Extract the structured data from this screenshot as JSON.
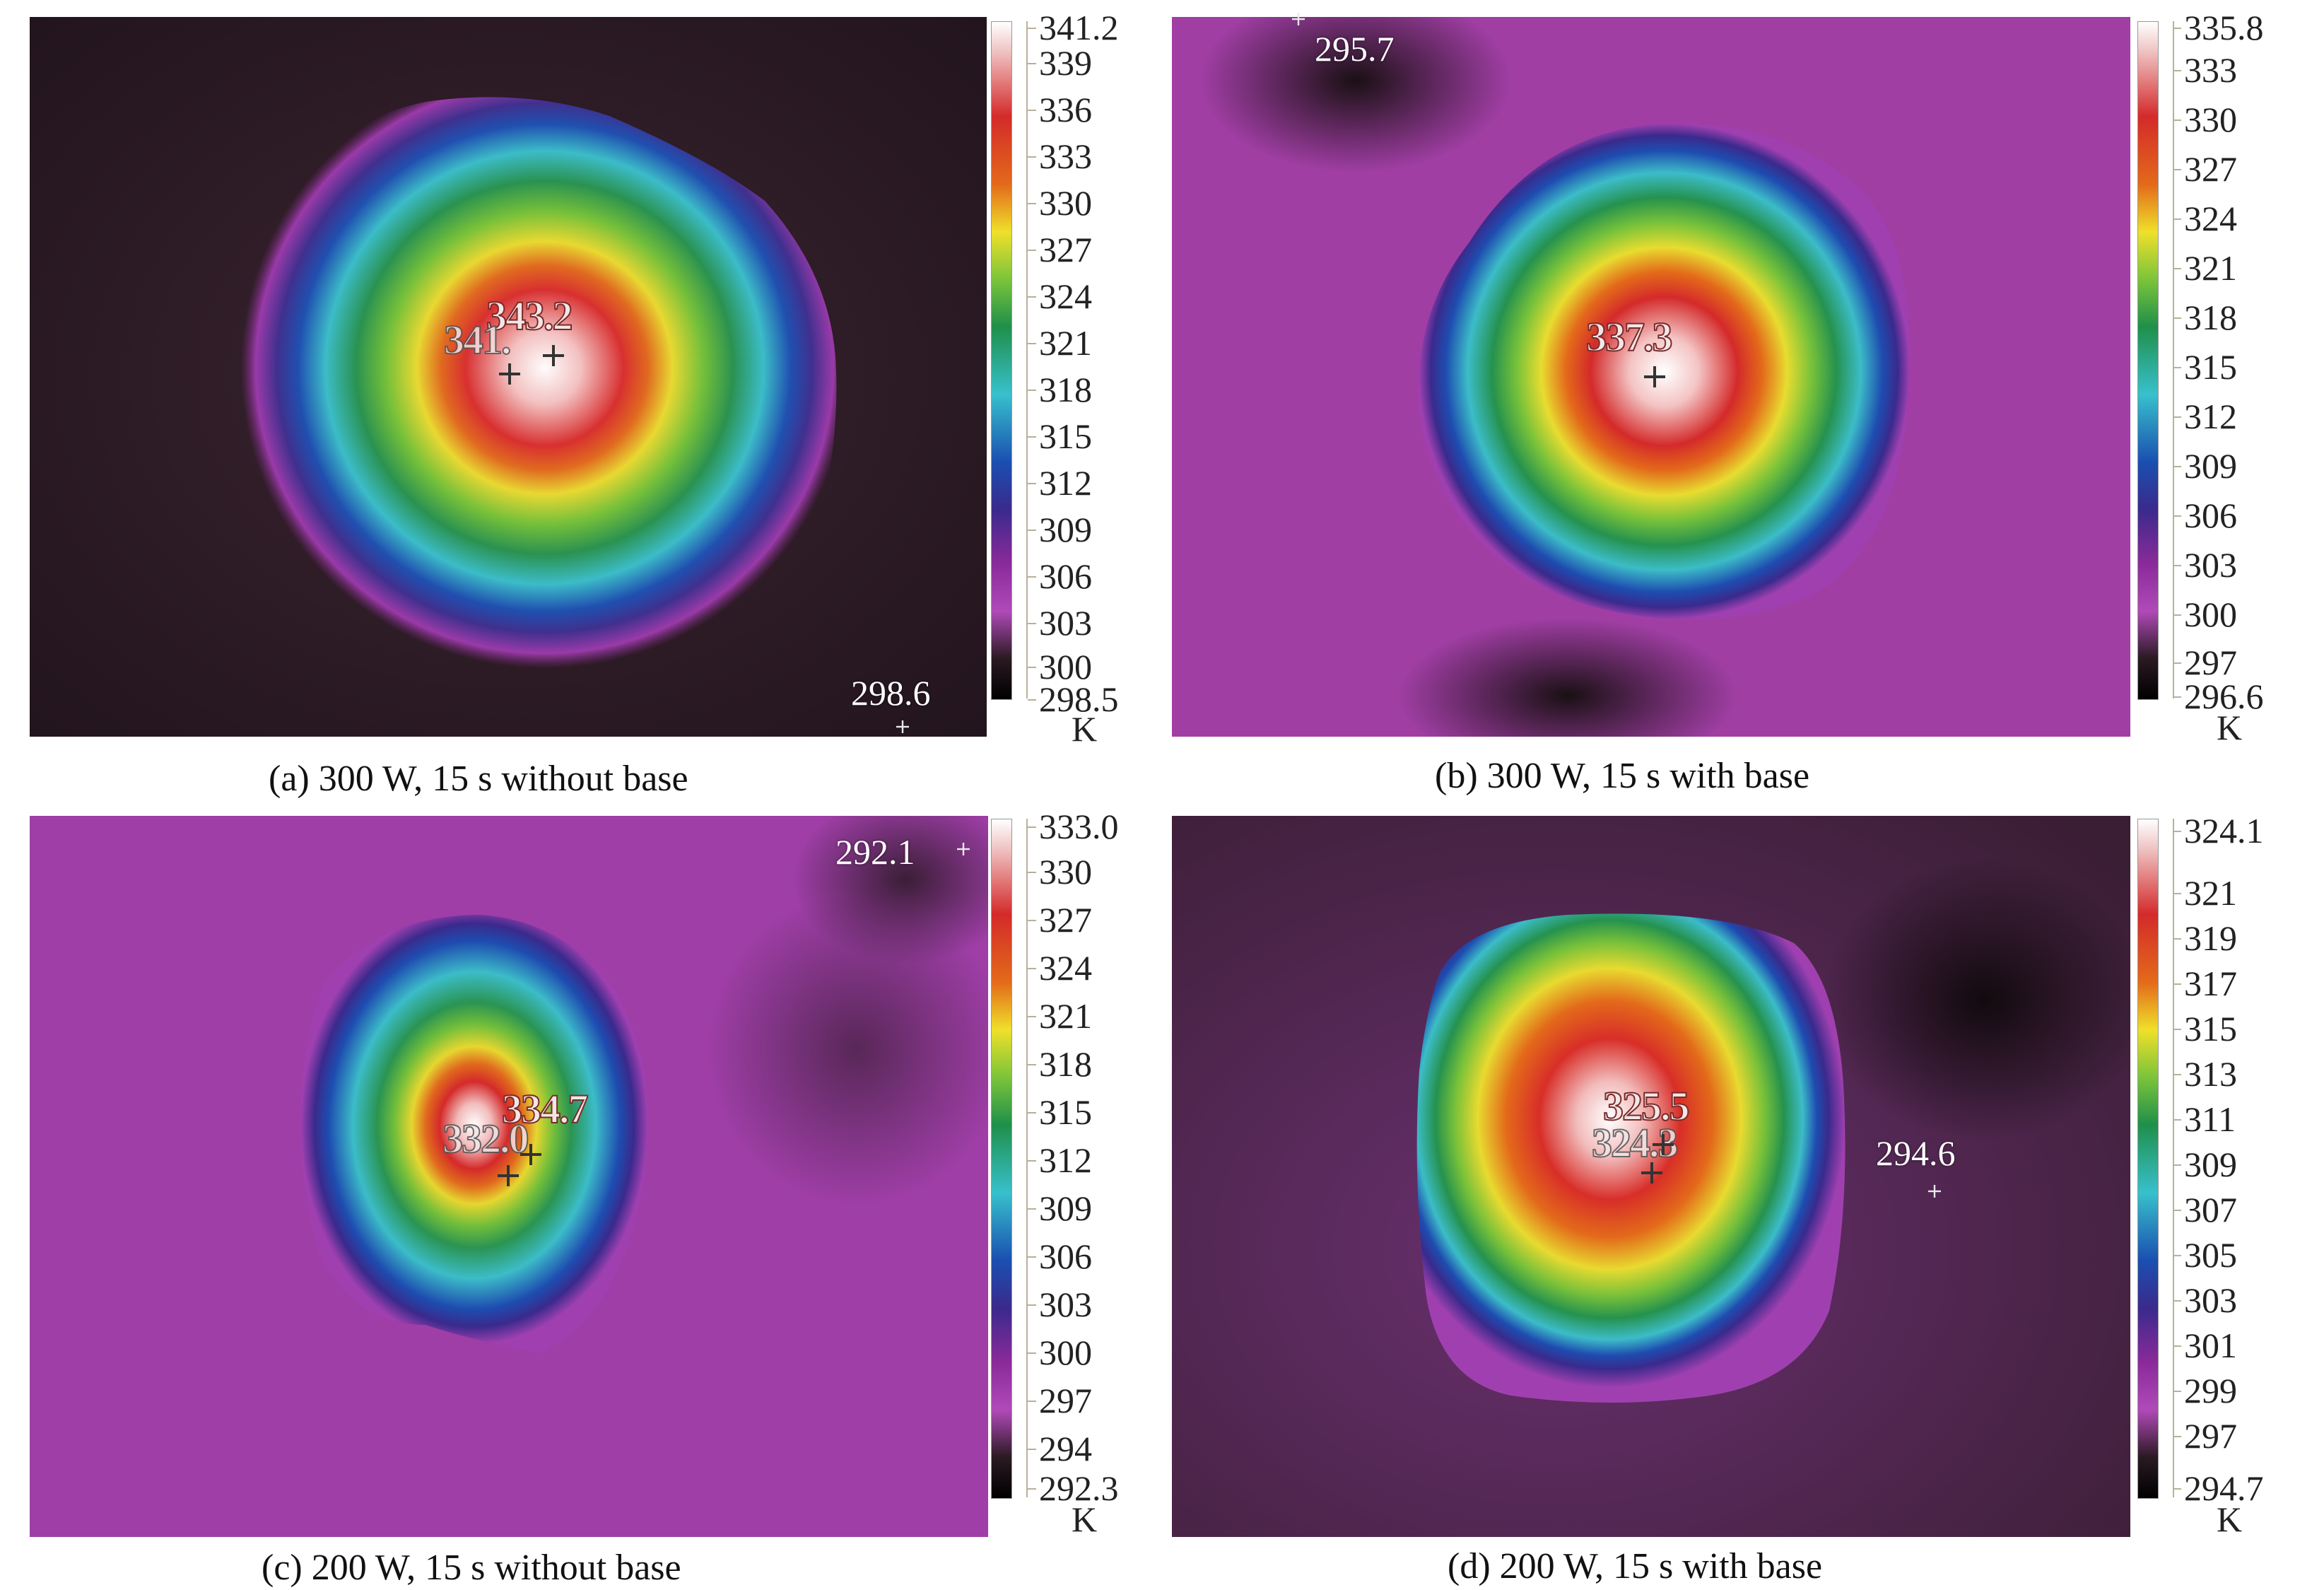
{
  "panels": [
    {
      "caption": "(a) 300 W, 15 s without base",
      "scale_top": "341.2",
      "scale_bottom": "298.5",
      "ticks": [
        "339",
        "336",
        "333",
        "330",
        "327",
        "324",
        "321",
        "318",
        "315",
        "312",
        "309",
        "306",
        "303",
        "300"
      ],
      "unit": "K",
      "peak_labels": [
        "343.2",
        "341."
      ],
      "spot_label": "298.6"
    },
    {
      "caption": "(b) 300 W, 15 s with base",
      "scale_top": "335.8",
      "scale_bottom": "296.6",
      "ticks": [
        "333",
        "330",
        "327",
        "324",
        "321",
        "318",
        "315",
        "312",
        "309",
        "306",
        "303",
        "300",
        "297"
      ],
      "unit": "K",
      "peak_labels": [
        "337.3"
      ],
      "spot_label": "295.7"
    },
    {
      "caption": "(c) 200 W, 15 s without base",
      "scale_top": "333.0",
      "scale_bottom": "292.3",
      "ticks": [
        "330",
        "327",
        "324",
        "321",
        "318",
        "315",
        "312",
        "309",
        "306",
        "303",
        "300",
        "297",
        "294"
      ],
      "unit": "K",
      "peak_labels": [
        "334.7",
        "332.0"
      ],
      "spot_label": "292.1"
    },
    {
      "caption": "(d) 200 W, 15 s with base",
      "scale_top": "324.1",
      "scale_bottom": "294.7",
      "ticks": [
        "321",
        "319",
        "317",
        "315",
        "313",
        "311",
        "309",
        "307",
        "305",
        "303",
        "301",
        "299",
        "297"
      ],
      "unit": "K",
      "peak_labels": [
        "325.5",
        "324.3"
      ],
      "spot_label": "294.6"
    }
  ],
  "colormap": [
    "#fdfafa",
    "#f0b0b0",
    "#d42a2a",
    "#e36a1a",
    "#efe02a",
    "#7cc43a",
    "#1f8f4a",
    "#38c0cc",
    "#1a4fb0",
    "#3a2a8c",
    "#8a2a9a",
    "#b04ab8",
    "#2a1a22",
    "#0a0a0a"
  ]
}
